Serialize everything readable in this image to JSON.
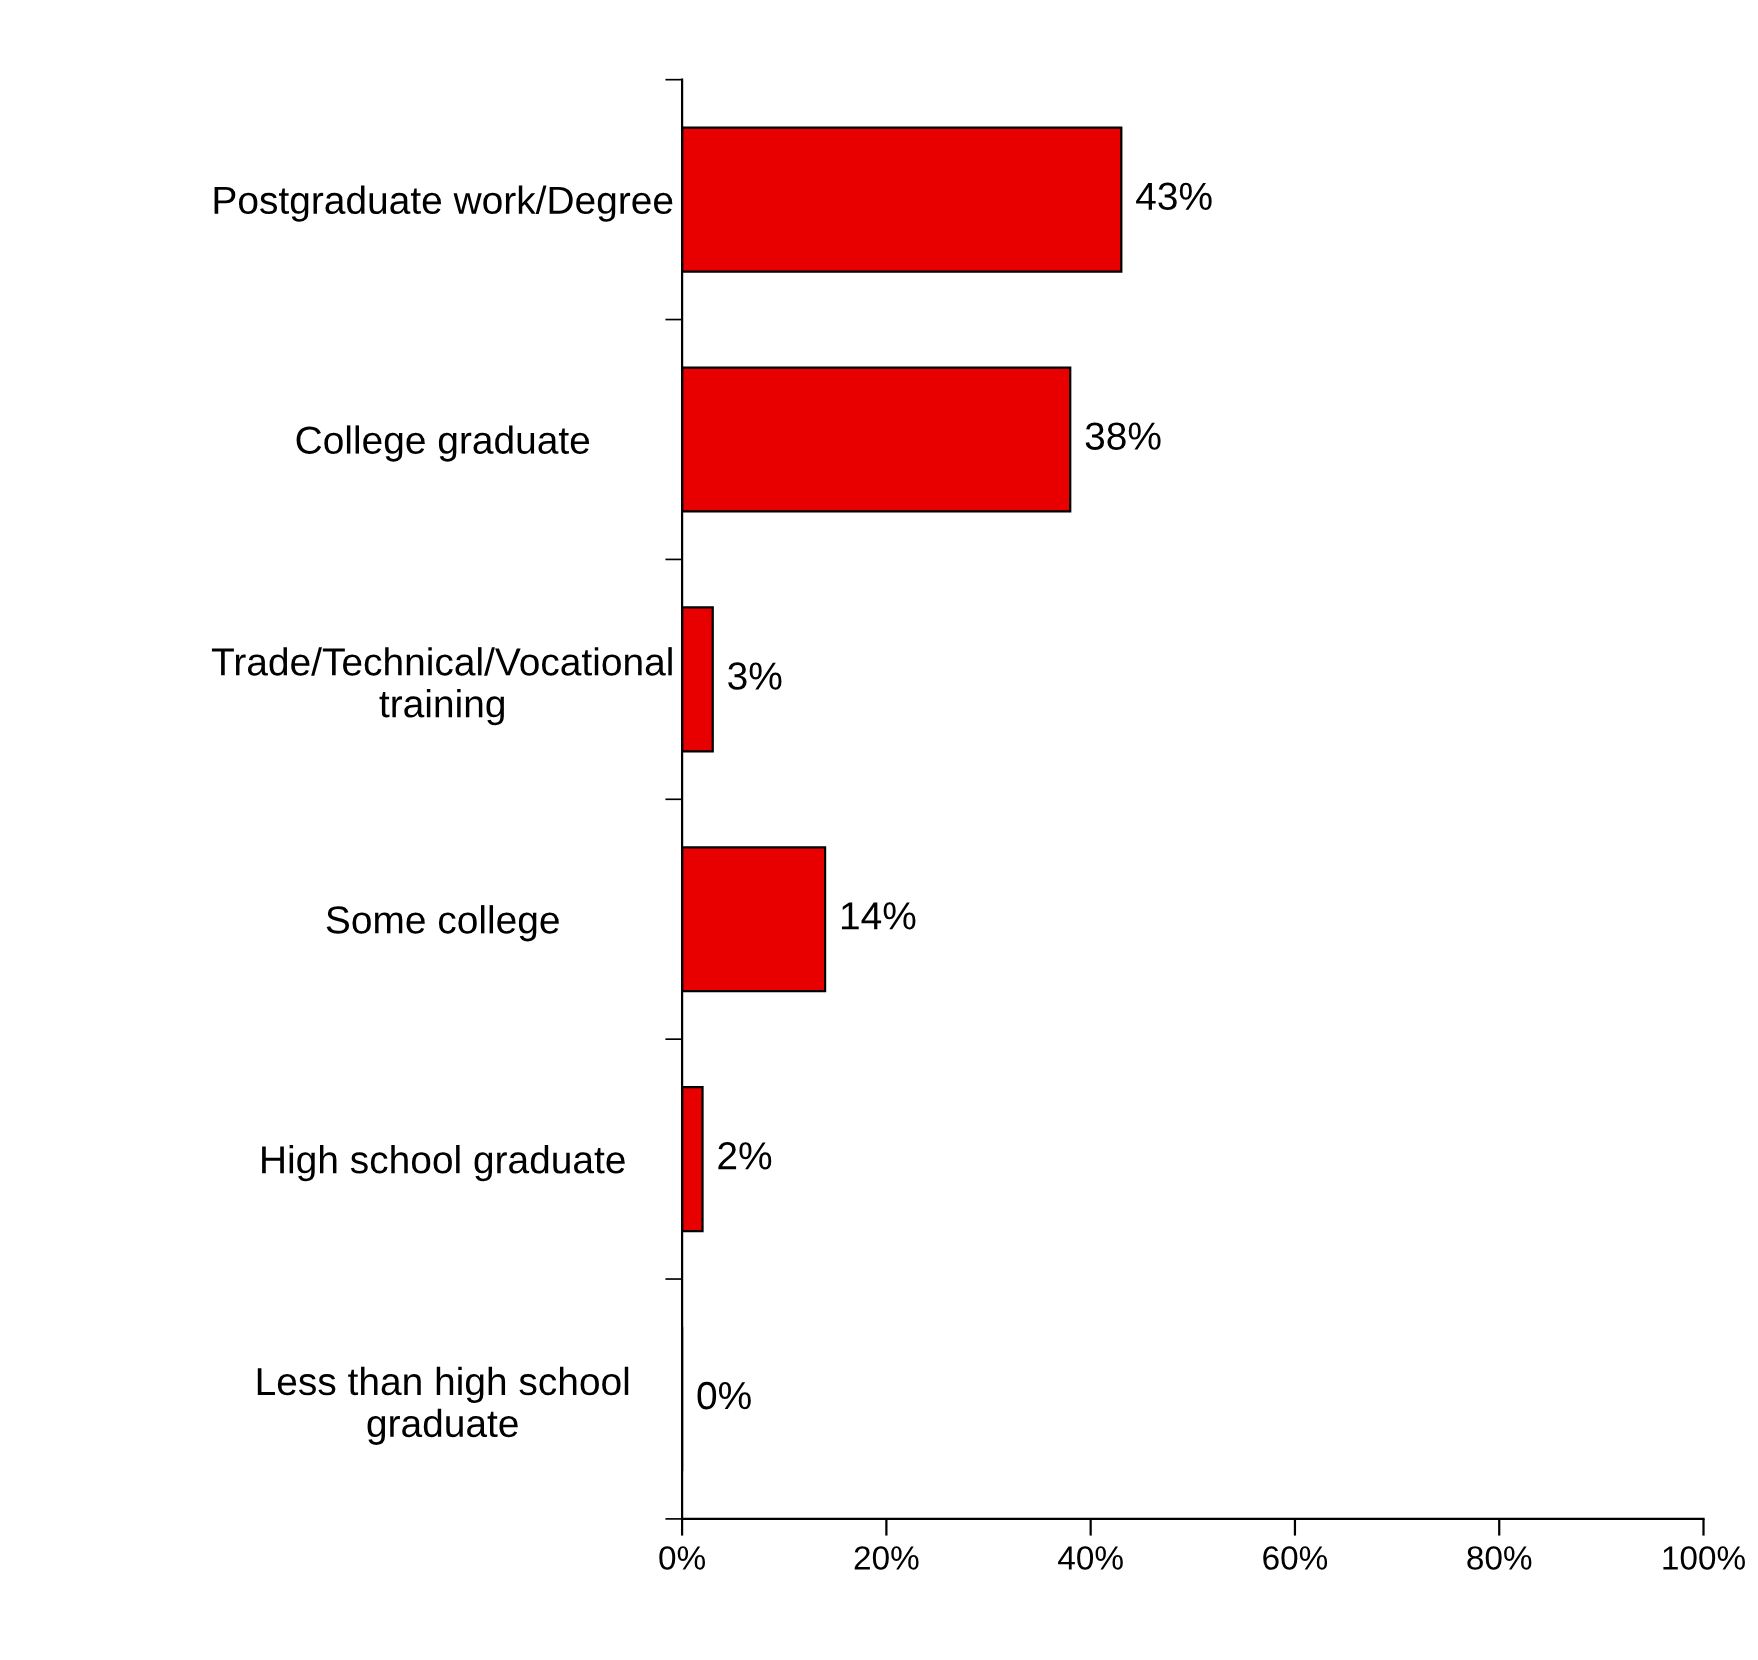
{
  "chart_data": {
    "type": "bar",
    "orientation": "horizontal",
    "categories": [
      "Postgraduate work/Degree",
      "College graduate",
      "Trade/Technical/Vocational\ntraining",
      "Some college",
      "High school graduate",
      "Less than high school\ngraduate"
    ],
    "series": [
      {
        "color": "#e80000",
        "values": [
          43,
          38,
          3,
          14,
          2,
          0
        ],
        "value_labels": [
          "43%",
          "38%",
          "3%",
          "14%",
          "2%",
          "0%"
        ]
      }
    ],
    "xlim": [
      0,
      100
    ],
    "xticks": [
      {
        "value": 0,
        "label": "0%"
      },
      {
        "value": 20,
        "label": "20%"
      },
      {
        "value": 40,
        "label": "40%"
      },
      {
        "value": 60,
        "label": "60%"
      },
      {
        "value": 80,
        "label": "80%"
      },
      {
        "value": 100,
        "label": "100%"
      }
    ]
  }
}
